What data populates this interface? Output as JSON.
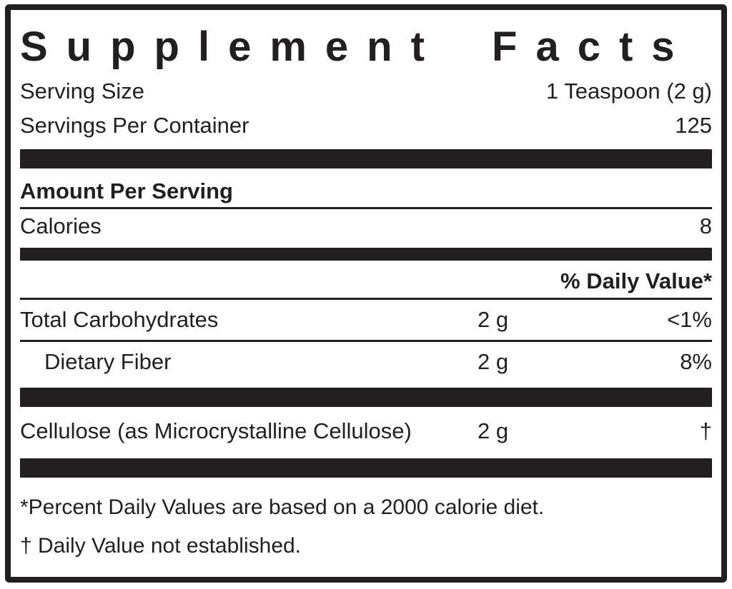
{
  "title": "Supplement Facts",
  "serving": {
    "size_label": "Serving Size",
    "size_value": "1 Teaspoon (2 g)",
    "per_container_label": "Servings Per Container",
    "per_container_value": "125"
  },
  "amount_per_serving": {
    "heading": "Amount Per Serving",
    "calories_label": "Calories",
    "calories_value": "8"
  },
  "daily_value_heading": "% Daily Value*",
  "nutrients": [
    {
      "name": "Total Carbohydrates",
      "amount": "2 g",
      "daily_value": "<1%"
    },
    {
      "name": "Dietary Fiber",
      "amount": "2 g",
      "daily_value": "8%"
    },
    {
      "name": "Cellulose (as Microcrystalline Cellulose)",
      "amount": "2 g",
      "daily_value": "†"
    }
  ],
  "footnotes": {
    "percent_daily_value": "*Percent Daily Values are based on a 2000 calorie diet.",
    "daily_value_not_established": "† Daily Value not established."
  },
  "colors": {
    "text": "#231f20",
    "bar": "#231f20",
    "background": "#ffffff"
  }
}
